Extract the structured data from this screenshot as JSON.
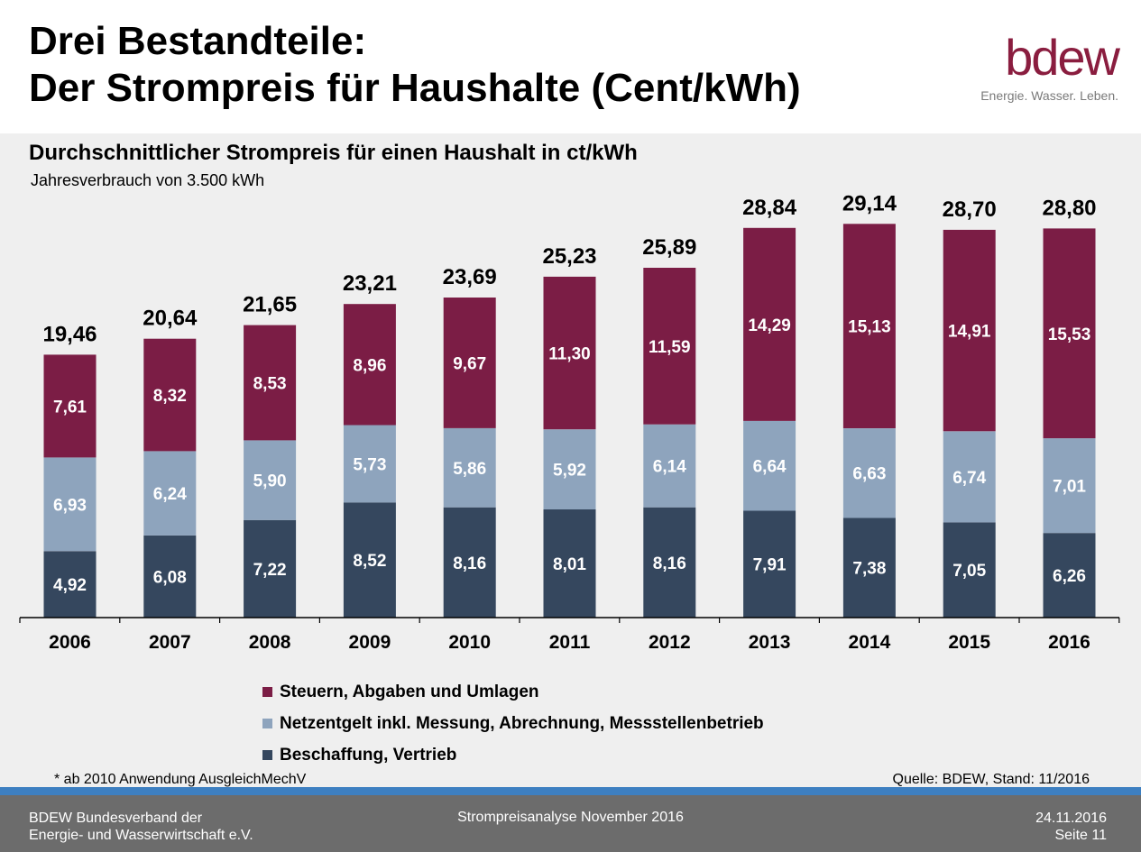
{
  "slide": {
    "title_line1": "Drei Bestandteile:",
    "title_line2": "Der Strompreis für Haushalte (Cent/kWh)"
  },
  "logo": {
    "word": "bdew",
    "tagline": "Energie. Wasser. Leben.",
    "color": "#8a1d3f"
  },
  "chart_data": {
    "type": "bar",
    "stacked": true,
    "title": "Durchschnittlicher Strompreis für einen Haushalt in ct/kWh",
    "subtitle": "Jahresverbrauch von 3.500 kWh",
    "categories": [
      "2006",
      "2007",
      "2008",
      "2009",
      "2010",
      "2011",
      "2012",
      "2013",
      "2014",
      "2015",
      "2016"
    ],
    "series": [
      {
        "name": "Beschaffung, Vertrieb",
        "color": "#35475e",
        "values": [
          4.92,
          6.08,
          7.22,
          8.52,
          8.16,
          8.01,
          8.16,
          7.91,
          7.38,
          7.05,
          6.26
        ],
        "labels": [
          "4,92",
          "6,08",
          "7,22",
          "8,52",
          "8,16",
          "8,01",
          "8,16",
          "7,91",
          "7,38",
          "7,05",
          "6,26"
        ]
      },
      {
        "name": "Netzentgelt inkl. Messung, Abrechnung, Messstellenbetrieb",
        "color": "#8ea4bd",
        "values": [
          6.93,
          6.24,
          5.9,
          5.73,
          5.86,
          5.92,
          6.14,
          6.64,
          6.63,
          6.74,
          7.01
        ],
        "labels": [
          "6,93",
          "6,24",
          "5,90",
          "5,73",
          "5,86",
          "5,92",
          "6,14",
          "6,64",
          "6,63",
          "6,74",
          "7,01"
        ]
      },
      {
        "name": "Steuern, Abgaben und Umlagen",
        "color": "#7b1d45",
        "values": [
          7.61,
          8.32,
          8.53,
          8.96,
          9.67,
          11.3,
          11.59,
          14.29,
          15.13,
          14.91,
          15.53
        ],
        "labels": [
          "7,61",
          "8,32",
          "8,53",
          "8,96",
          "9,67",
          "11,30",
          "11,59",
          "14,29",
          "15,13",
          "14,91",
          "15,53"
        ]
      }
    ],
    "totals": [
      19.46,
      20.64,
      21.65,
      23.21,
      23.69,
      25.23,
      25.89,
      28.84,
      29.14,
      28.7,
      28.8
    ],
    "total_labels": [
      "19,46",
      "20,64",
      "21,65",
      "23,21",
      "23,69",
      "25,23",
      "25,89",
      "28,84",
      "29,14",
      "28,70",
      "28,80"
    ],
    "legend": [
      "Steuern, Abgaben und Umlagen",
      "Netzentgelt inkl. Messung, Abrechnung, Messstellenbetrieb",
      "Beschaffung, Vertrieb"
    ],
    "legend_colors": [
      "#7b1d45",
      "#8ea4bd",
      "#35475e"
    ],
    "legend_placement": "bottom",
    "grid": false
  },
  "footnote": "* ab 2010 Anwendung AusgleichMechV",
  "source": "Quelle: BDEW, Stand: 11/2016",
  "footer": {
    "org_line1": "BDEW Bundesverband der",
    "org_line2": "Energie- und Wasserwirtschaft e.V.",
    "center": "Strompreisanalyse November 2016",
    "date": "24.11.2016",
    "page": "Seite 11"
  }
}
